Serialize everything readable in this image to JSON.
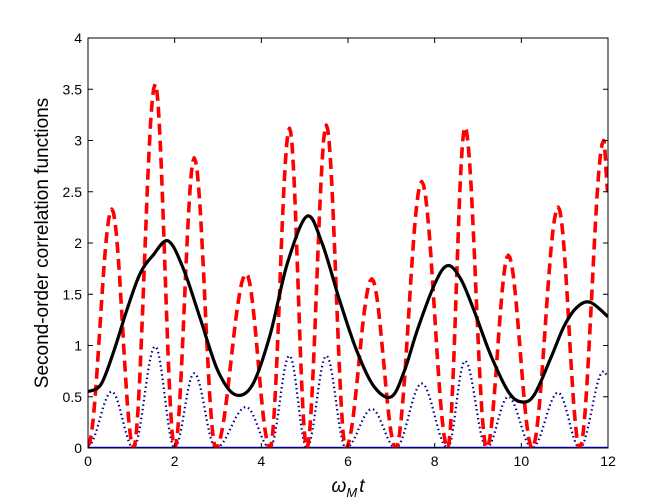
{
  "chart_data": {
    "type": "line",
    "xlabel": "ω_M t",
    "xlabel_main": "ω",
    "xlabel_sub": "M",
    "xlabel_tail": "t",
    "ylabel": "Second-order correlation functions",
    "xlim": [
      0,
      12
    ],
    "ylim": [
      0,
      4
    ],
    "xticks": [
      "0",
      "2",
      "4",
      "6",
      "8",
      "10",
      "12"
    ],
    "yticks": [
      "0",
      "0.5",
      "1",
      "1.5",
      "2",
      "2.5",
      "3",
      "3.5",
      "4"
    ],
    "grid": false,
    "series": [
      {
        "style": "solid",
        "color": "#000000",
        "x": [
          0,
          0.3,
          0.6,
          0.9,
          1.2,
          1.5,
          1.85,
          2.2,
          2.6,
          3.0,
          3.4,
          3.8,
          4.2,
          4.6,
          5.05,
          5.4,
          5.8,
          6.2,
          6.6,
          7.0,
          7.3,
          7.6,
          8.0,
          8.3,
          8.6,
          8.9,
          9.3,
          9.7,
          10.0,
          10.3,
          10.7,
          11.0,
          11.3,
          11.6,
          12.0
        ],
        "y": [
          0.55,
          0.62,
          0.95,
          1.35,
          1.7,
          1.88,
          2.02,
          1.75,
          1.25,
          0.75,
          0.52,
          0.62,
          1.1,
          1.8,
          2.26,
          2.0,
          1.45,
          0.95,
          0.6,
          0.5,
          0.75,
          1.15,
          1.6,
          1.78,
          1.65,
          1.35,
          0.9,
          0.55,
          0.45,
          0.52,
          0.9,
          1.2,
          1.38,
          1.42,
          1.28
        ]
      },
      {
        "style": "dashed",
        "color": "#ff0000",
        "peaks_x": [
          0.55,
          1.55,
          2.45,
          3.65,
          4.65,
          5.5,
          6.55,
          7.7,
          8.7,
          9.7,
          10.85,
          11.9
        ],
        "peaks_y": [
          2.33,
          3.55,
          2.83,
          1.7,
          3.12,
          3.15,
          1.65,
          2.6,
          3.13,
          1.88,
          2.35,
          3.0
        ],
        "dips_x": [
          0,
          1.05,
          2.0,
          2.95,
          4.2,
          5.05,
          5.95,
          7.1,
          8.3,
          9.2,
          10.25,
          11.35
        ],
        "dips_y": [
          0.02,
          0.0,
          0.0,
          0.0,
          0.0,
          0.0,
          0.0,
          0.0,
          0.0,
          0.0,
          0.0,
          0.0
        ],
        "end_y": 2.5
      },
      {
        "style": "dotted",
        "color": "#00008b",
        "peaks_x": [
          0.55,
          1.55,
          2.45,
          3.65,
          4.65,
          5.5,
          6.55,
          7.7,
          8.7,
          9.7,
          10.85,
          11.9
        ],
        "peaks_y": [
          0.55,
          0.99,
          0.73,
          0.4,
          0.9,
          0.9,
          0.38,
          0.63,
          0.85,
          0.5,
          0.54,
          0.75
        ],
        "dips_x": [
          0,
          1.05,
          2.0,
          2.95,
          4.2,
          5.05,
          5.95,
          7.1,
          8.3,
          9.2,
          10.25,
          11.35
        ],
        "dips_y": [
          0.02,
          0.0,
          0.0,
          0.0,
          0.0,
          0.0,
          0.0,
          0.0,
          0.0,
          0.0,
          0.0,
          0.0
        ],
        "end_y": 0.7
      },
      {
        "style": "solid",
        "color": "#0000ff",
        "x": [
          0,
          12
        ],
        "y": [
          0,
          0
        ]
      }
    ]
  }
}
